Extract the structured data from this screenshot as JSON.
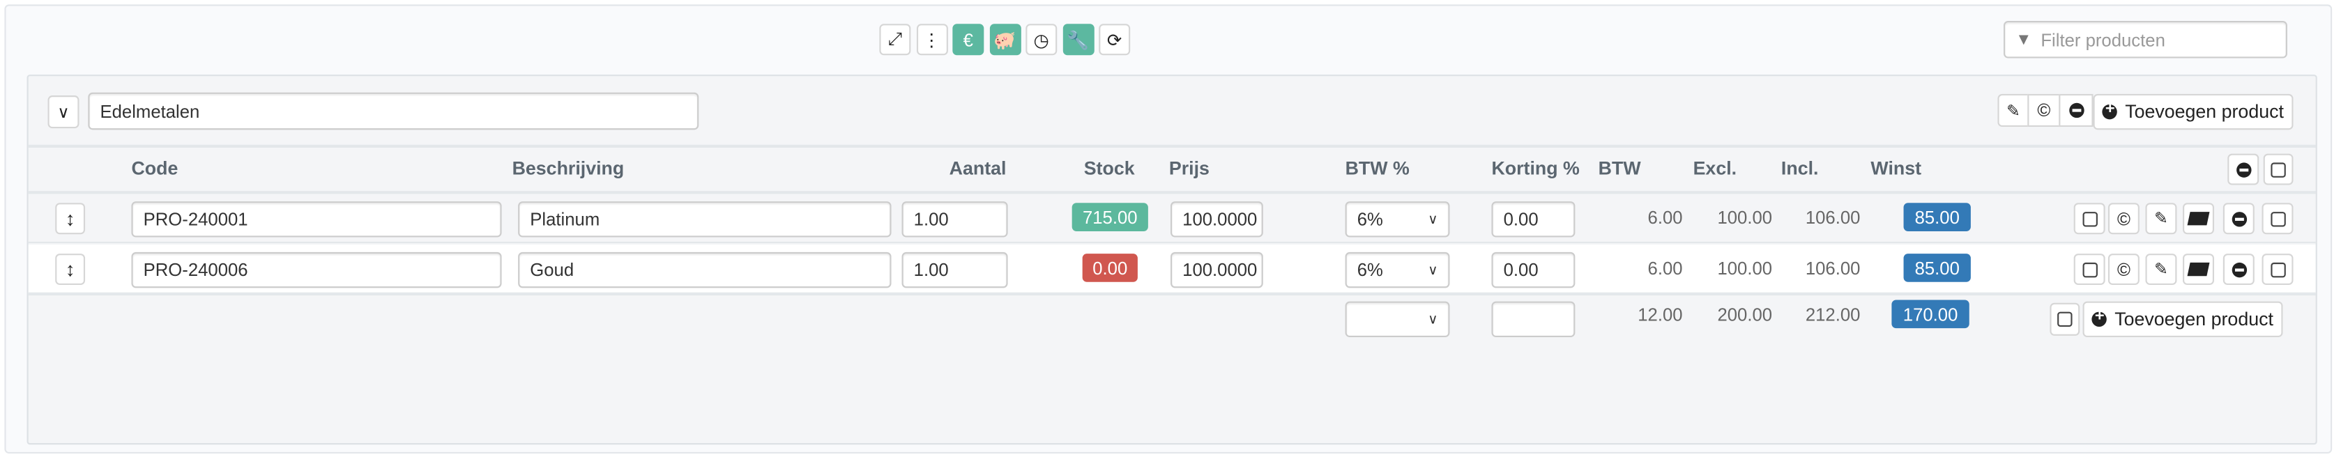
{
  "toolbar": {
    "buttons": [
      {
        "icon": "expand-icon",
        "glyph": "⤢",
        "active": false
      },
      {
        "icon": "vertical-dots-icon",
        "glyph": "⋮",
        "active": false
      },
      {
        "icon": "euro-icon",
        "glyph": "€",
        "active": true
      },
      {
        "icon": "piggy-bank-icon",
        "glyph": "🐖",
        "active": true
      },
      {
        "icon": "speedometer-icon",
        "glyph": "◷",
        "active": false
      },
      {
        "icon": "wrench-icon",
        "glyph": "🔧",
        "active": true
      },
      {
        "icon": "refresh-icon",
        "glyph": "⟳",
        "active": false
      }
    ],
    "filter_placeholder": "Filter producten"
  },
  "group": {
    "name": "Edelmetalen",
    "add_product_label": "Toevoegen product"
  },
  "columns": [
    "Code",
    "Beschrijving",
    "Aantal",
    "Stock",
    "Prijs",
    "BTW %",
    "Korting %",
    "BTW",
    "Excl.",
    "Incl.",
    "Winst"
  ],
  "rows": [
    {
      "code": "PRO-240001",
      "description": "Platinum",
      "quantity": "1.00",
      "stock": "715.00",
      "stock_status": "ok",
      "price": "100.0000",
      "vat_pct": "6%",
      "discount": "0.00",
      "vat": "6.00",
      "excl": "100.00",
      "incl": "106.00",
      "profit": "85.00"
    },
    {
      "code": "PRO-240006",
      "description": "Goud",
      "quantity": "1.00",
      "stock": "0.00",
      "stock_status": "empty",
      "price": "100.0000",
      "vat_pct": "6%",
      "discount": "0.00",
      "vat": "6.00",
      "excl": "100.00",
      "incl": "106.00",
      "profit": "85.00"
    }
  ],
  "totals": {
    "vat_pct": "",
    "discount": "",
    "vat": "12.00",
    "excl": "200.00",
    "incl": "212.00",
    "profit": "170.00",
    "add_product_label": "Toevoegen product"
  },
  "colors": {
    "accent_green": "#5cb8a0",
    "stock_ok": "#5cb89d",
    "stock_empty": "#d0574f",
    "profit_blue": "#337ab7"
  }
}
